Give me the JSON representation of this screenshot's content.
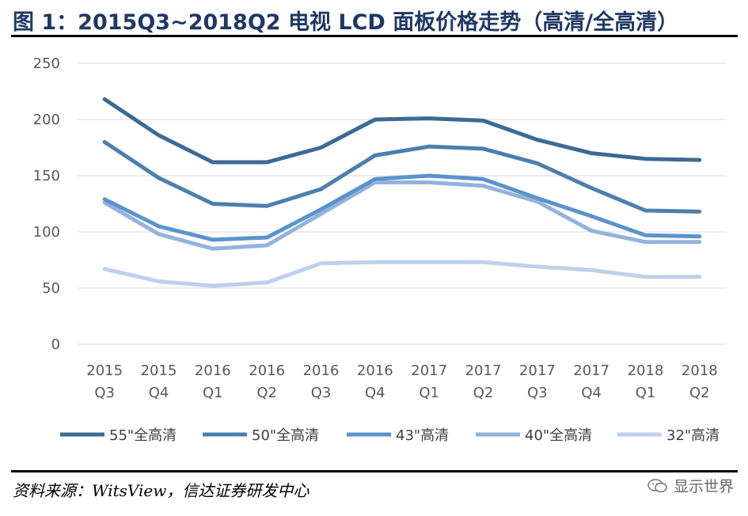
{
  "header": {
    "title": "图 1：2015Q3~2018Q2 电视 LCD 面板价格走势（高清/全高清）"
  },
  "footer": {
    "source": "资料来源：WitsView，信达证券研发中心",
    "watermark": "显示世界"
  },
  "chart_data": {
    "type": "line",
    "title": "图 1：2015Q3~2018Q2 电视 LCD 面板价格走势（高清/全高清）",
    "xlabel": "",
    "ylabel": "",
    "categories": [
      [
        "2015",
        "Q3"
      ],
      [
        "2015",
        "Q4"
      ],
      [
        "2016",
        "Q1"
      ],
      [
        "2016",
        "Q2"
      ],
      [
        "2016",
        "Q3"
      ],
      [
        "2016",
        "Q4"
      ],
      [
        "2017",
        "Q1"
      ],
      [
        "2017",
        "Q2"
      ],
      [
        "2017",
        "Q3"
      ],
      [
        "2017",
        "Q4"
      ],
      [
        "2018",
        "Q1"
      ],
      [
        "2018",
        "Q2"
      ]
    ],
    "yticks": [
      "0",
      "50",
      "100",
      "150",
      "200",
      "250"
    ],
    "ylim": [
      0,
      250
    ],
    "grid": true,
    "legend_position": "bottom",
    "series": [
      {
        "name": "55\"全高清",
        "color": "#3d6a94",
        "values": [
          218,
          186,
          162,
          162,
          175,
          200,
          201,
          199,
          182,
          170,
          165,
          164
        ]
      },
      {
        "name": "50\"全高清",
        "color": "#4b7fae",
        "values": [
          180,
          148,
          125,
          123,
          138,
          168,
          176,
          174,
          161,
          139,
          119,
          118
        ]
      },
      {
        "name": "43\"高清",
        "color": "#5b93cc",
        "values": [
          129,
          105,
          93,
          95,
          120,
          147,
          150,
          147,
          130,
          114,
          97,
          96
        ]
      },
      {
        "name": "40\"全高清",
        "color": "#92b3dc",
        "values": [
          126,
          98,
          85,
          88,
          116,
          144,
          144,
          141,
          127,
          101,
          91,
          91
        ]
      },
      {
        "name": "32\"高清",
        "color": "#bdd0eb",
        "values": [
          67,
          56,
          52,
          55,
          72,
          73,
          73,
          73,
          69,
          66,
          60,
          60
        ]
      }
    ]
  }
}
